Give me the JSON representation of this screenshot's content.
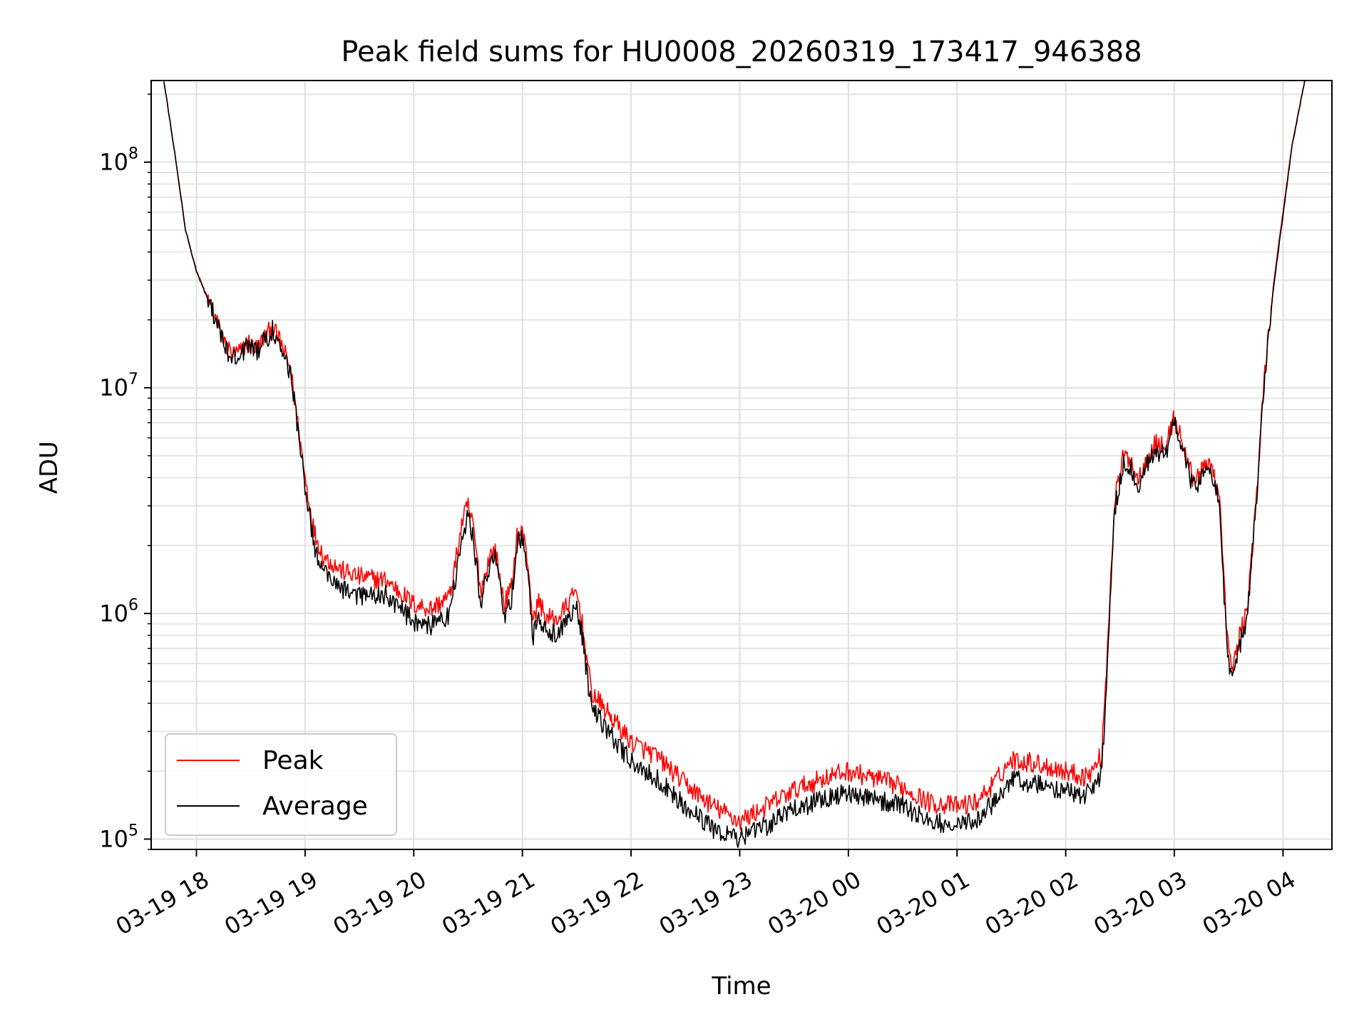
{
  "chart_data": {
    "type": "line",
    "title": "Peak field sums for HU0008_20260319_173417_946388",
    "xlabel": "Time",
    "ylabel": "ADU",
    "yscale": "log",
    "grid": true,
    "legend_position": "lower-left",
    "x_ticks": [
      "03-19 18",
      "03-19 19",
      "03-19 20",
      "03-19 21",
      "03-19 22",
      "03-19 23",
      "03-20 00",
      "03-20 01",
      "03-20 02",
      "03-20 03",
      "03-20 04"
    ],
    "y_ticks": [
      {
        "value": 100000,
        "base": "10",
        "exp": "5"
      },
      {
        "value": 1000000,
        "base": "10",
        "exp": "6"
      },
      {
        "value": 10000000,
        "base": "10",
        "exp": "7"
      },
      {
        "value": 100000000,
        "base": "10",
        "exp": "8"
      }
    ],
    "xlim": [
      "03-19 17:35",
      "03-20 04:27"
    ],
    "ylim": [
      90000,
      230000000
    ],
    "series": [
      {
        "name": "Peak",
        "color": "#ff0000",
        "points": [
          [
            "03-19 17:42",
            230000000
          ],
          [
            "03-19 17:48",
            110000000
          ],
          [
            "03-19 17:54",
            50000000
          ],
          [
            "03-19 18:00",
            33000000
          ],
          [
            "03-19 18:10",
            21000000
          ],
          [
            "03-19 18:15",
            16000000
          ],
          [
            "03-19 18:20",
            14000000
          ],
          [
            "03-19 18:25",
            14500000
          ],
          [
            "03-19 18:28",
            16000000
          ],
          [
            "03-19 18:33",
            15000000
          ],
          [
            "03-19 18:36",
            16000000
          ],
          [
            "03-19 18:42",
            18500000
          ],
          [
            "03-19 18:47",
            15500000
          ],
          [
            "03-19 18:52",
            12000000
          ],
          [
            "03-19 19:00",
            4000000
          ],
          [
            "03-19 19:05",
            2300000
          ],
          [
            "03-19 19:10",
            1800000
          ],
          [
            "03-19 19:20",
            1550000
          ],
          [
            "03-19 19:30",
            1450000
          ],
          [
            "03-19 19:45",
            1400000
          ],
          [
            "03-19 20:00",
            1100000
          ],
          [
            "03-19 20:10",
            1050000
          ],
          [
            "03-19 20:20",
            1200000
          ],
          [
            "03-19 20:27",
            2600000
          ],
          [
            "03-19 20:30",
            3000000
          ],
          [
            "03-19 20:33",
            2400000
          ],
          [
            "03-19 20:37",
            1250000
          ],
          [
            "03-19 20:42",
            1800000
          ],
          [
            "03-19 20:45",
            1900000
          ],
          [
            "03-19 20:50",
            1100000
          ],
          [
            "03-19 20:54",
            1300000
          ],
          [
            "03-19 20:57",
            2200000
          ],
          [
            "03-19 21:00",
            2300000
          ],
          [
            "03-19 21:03",
            1700000
          ],
          [
            "03-19 21:06",
            900000
          ],
          [
            "03-19 21:09",
            1150000
          ],
          [
            "03-19 21:13",
            950000
          ],
          [
            "03-19 21:20",
            950000
          ],
          [
            "03-19 21:25",
            1100000
          ],
          [
            "03-19 21:30",
            1250000
          ],
          [
            "03-19 21:33",
            900000
          ],
          [
            "03-19 21:38",
            450000
          ],
          [
            "03-19 21:45",
            380000
          ],
          [
            "03-19 22:00",
            270000
          ],
          [
            "03-19 22:15",
            230000
          ],
          [
            "03-19 22:30",
            175000
          ],
          [
            "03-19 22:45",
            140000
          ],
          [
            "03-19 23:00",
            120000
          ],
          [
            "03-19 23:15",
            140000
          ],
          [
            "03-19 23:30",
            165000
          ],
          [
            "03-19 23:45",
            185000
          ],
          [
            "03-20 00:00",
            200000
          ],
          [
            "03-20 00:15",
            185000
          ],
          [
            "03-20 00:30",
            170000
          ],
          [
            "03-20 00:45",
            145000
          ],
          [
            "03-20 01:00",
            140000
          ],
          [
            "03-20 01:10",
            145000
          ],
          [
            "03-20 01:20",
            175000
          ],
          [
            "03-20 01:30",
            225000
          ],
          [
            "03-20 01:40",
            220000
          ],
          [
            "03-20 01:50",
            210000
          ],
          [
            "03-20 02:00",
            200000
          ],
          [
            "03-20 02:10",
            190000
          ],
          [
            "03-20 02:15",
            200000
          ],
          [
            "03-20 02:20",
            240000
          ],
          [
            "03-20 02:23",
            700000
          ],
          [
            "03-20 02:27",
            3200000
          ],
          [
            "03-20 02:32",
            5000000
          ],
          [
            "03-20 02:36",
            4800000
          ],
          [
            "03-20 02:40",
            3900000
          ],
          [
            "03-20 02:45",
            5000000
          ],
          [
            "03-20 02:50",
            5700000
          ],
          [
            "03-20 02:55",
            5400000
          ],
          [
            "03-20 03:00",
            7500000
          ],
          [
            "03-20 03:05",
            5500000
          ],
          [
            "03-20 03:10",
            4000000
          ],
          [
            "03-20 03:15",
            4200000
          ],
          [
            "03-20 03:20",
            4800000
          ],
          [
            "03-20 03:25",
            3200000
          ],
          [
            "03-20 03:29",
            800000
          ],
          [
            "03-20 03:32",
            550000
          ],
          [
            "03-20 03:36",
            800000
          ],
          [
            "03-20 03:40",
            1000000
          ],
          [
            "03-20 03:45",
            3000000
          ],
          [
            "03-20 03:50",
            12000000
          ],
          [
            "03-20 03:55",
            30000000
          ],
          [
            "03-20 04:00",
            60000000
          ],
          [
            "03-20 04:05",
            120000000
          ],
          [
            "03-20 04:12",
            230000000
          ]
        ]
      },
      {
        "name": "Average",
        "color": "#000000",
        "points": [
          [
            "03-19 17:42",
            230000000
          ],
          [
            "03-19 17:48",
            110000000
          ],
          [
            "03-19 17:54",
            50000000
          ],
          [
            "03-19 18:00",
            33000000
          ],
          [
            "03-19 18:10",
            20500000
          ],
          [
            "03-19 18:15",
            15500000
          ],
          [
            "03-19 18:20",
            13500000
          ],
          [
            "03-19 18:25",
            14000000
          ],
          [
            "03-19 18:28",
            15500000
          ],
          [
            "03-19 18:33",
            14500000
          ],
          [
            "03-19 18:36",
            15500000
          ],
          [
            "03-19 18:42",
            18000000
          ],
          [
            "03-19 18:47",
            15000000
          ],
          [
            "03-19 18:52",
            11500000
          ],
          [
            "03-19 19:00",
            3700000
          ],
          [
            "03-19 19:05",
            2000000
          ],
          [
            "03-19 19:10",
            1550000
          ],
          [
            "03-19 19:20",
            1300000
          ],
          [
            "03-19 19:30",
            1200000
          ],
          [
            "03-19 19:45",
            1200000
          ],
          [
            "03-19 20:00",
            920000
          ],
          [
            "03-19 20:10",
            880000
          ],
          [
            "03-19 20:20",
            1000000
          ],
          [
            "03-19 20:27",
            2300000
          ],
          [
            "03-19 20:30",
            2700000
          ],
          [
            "03-19 20:33",
            2100000
          ],
          [
            "03-19 20:37",
            1100000
          ],
          [
            "03-19 20:42",
            1650000
          ],
          [
            "03-19 20:45",
            1800000
          ],
          [
            "03-19 20:50",
            950000
          ],
          [
            "03-19 20:54",
            1150000
          ],
          [
            "03-19 20:57",
            2050000
          ],
          [
            "03-19 21:00",
            2150000
          ],
          [
            "03-19 21:03",
            1500000
          ],
          [
            "03-19 21:06",
            780000
          ],
          [
            "03-19 21:09",
            1000000
          ],
          [
            "03-19 21:13",
            820000
          ],
          [
            "03-19 21:20",
            820000
          ],
          [
            "03-19 21:25",
            960000
          ],
          [
            "03-19 21:30",
            1100000
          ],
          [
            "03-19 21:33",
            800000
          ],
          [
            "03-19 21:38",
            380000
          ],
          [
            "03-19 21:45",
            320000
          ],
          [
            "03-19 22:00",
            220000
          ],
          [
            "03-19 22:15",
            185000
          ],
          [
            "03-19 22:30",
            140000
          ],
          [
            "03-19 22:45",
            112000
          ],
          [
            "03-19 23:00",
            100000
          ],
          [
            "03-19 23:15",
            115000
          ],
          [
            "03-19 23:30",
            135000
          ],
          [
            "03-19 23:45",
            150000
          ],
          [
            "03-20 00:00",
            160000
          ],
          [
            "03-20 00:15",
            150000
          ],
          [
            "03-20 00:30",
            140000
          ],
          [
            "03-20 00:45",
            120000
          ],
          [
            "03-20 01:00",
            115000
          ],
          [
            "03-20 01:10",
            120000
          ],
          [
            "03-20 01:20",
            145000
          ],
          [
            "03-20 01:30",
            185000
          ],
          [
            "03-20 01:40",
            178000
          ],
          [
            "03-20 01:50",
            170000
          ],
          [
            "03-20 02:00",
            165000
          ],
          [
            "03-20 02:10",
            158000
          ],
          [
            "03-20 02:15",
            165000
          ],
          [
            "03-20 02:20",
            200000
          ],
          [
            "03-20 02:23",
            600000
          ],
          [
            "03-20 02:27",
            2900000
          ],
          [
            "03-20 02:32",
            4600000
          ],
          [
            "03-20 02:36",
            4400000
          ],
          [
            "03-20 02:40",
            3600000
          ],
          [
            "03-20 02:45",
            4600000
          ],
          [
            "03-20 02:50",
            5300000
          ],
          [
            "03-20 02:55",
            5000000
          ],
          [
            "03-20 03:00",
            7100000
          ],
          [
            "03-20 03:05",
            5100000
          ],
          [
            "03-20 03:10",
            3700000
          ],
          [
            "03-20 03:15",
            3900000
          ],
          [
            "03-20 03:20",
            4500000
          ],
          [
            "03-20 03:25",
            3000000
          ],
          [
            "03-20 03:29",
            700000
          ],
          [
            "03-20 03:32",
            480000
          ],
          [
            "03-20 03:36",
            720000
          ],
          [
            "03-20 03:40",
            950000
          ],
          [
            "03-20 03:45",
            2900000
          ],
          [
            "03-20 03:50",
            11500000
          ],
          [
            "03-20 03:55",
            29000000
          ],
          [
            "03-20 04:00",
            58000000
          ],
          [
            "03-20 04:05",
            118000000
          ],
          [
            "03-20 04:12",
            230000000
          ]
        ]
      }
    ]
  }
}
